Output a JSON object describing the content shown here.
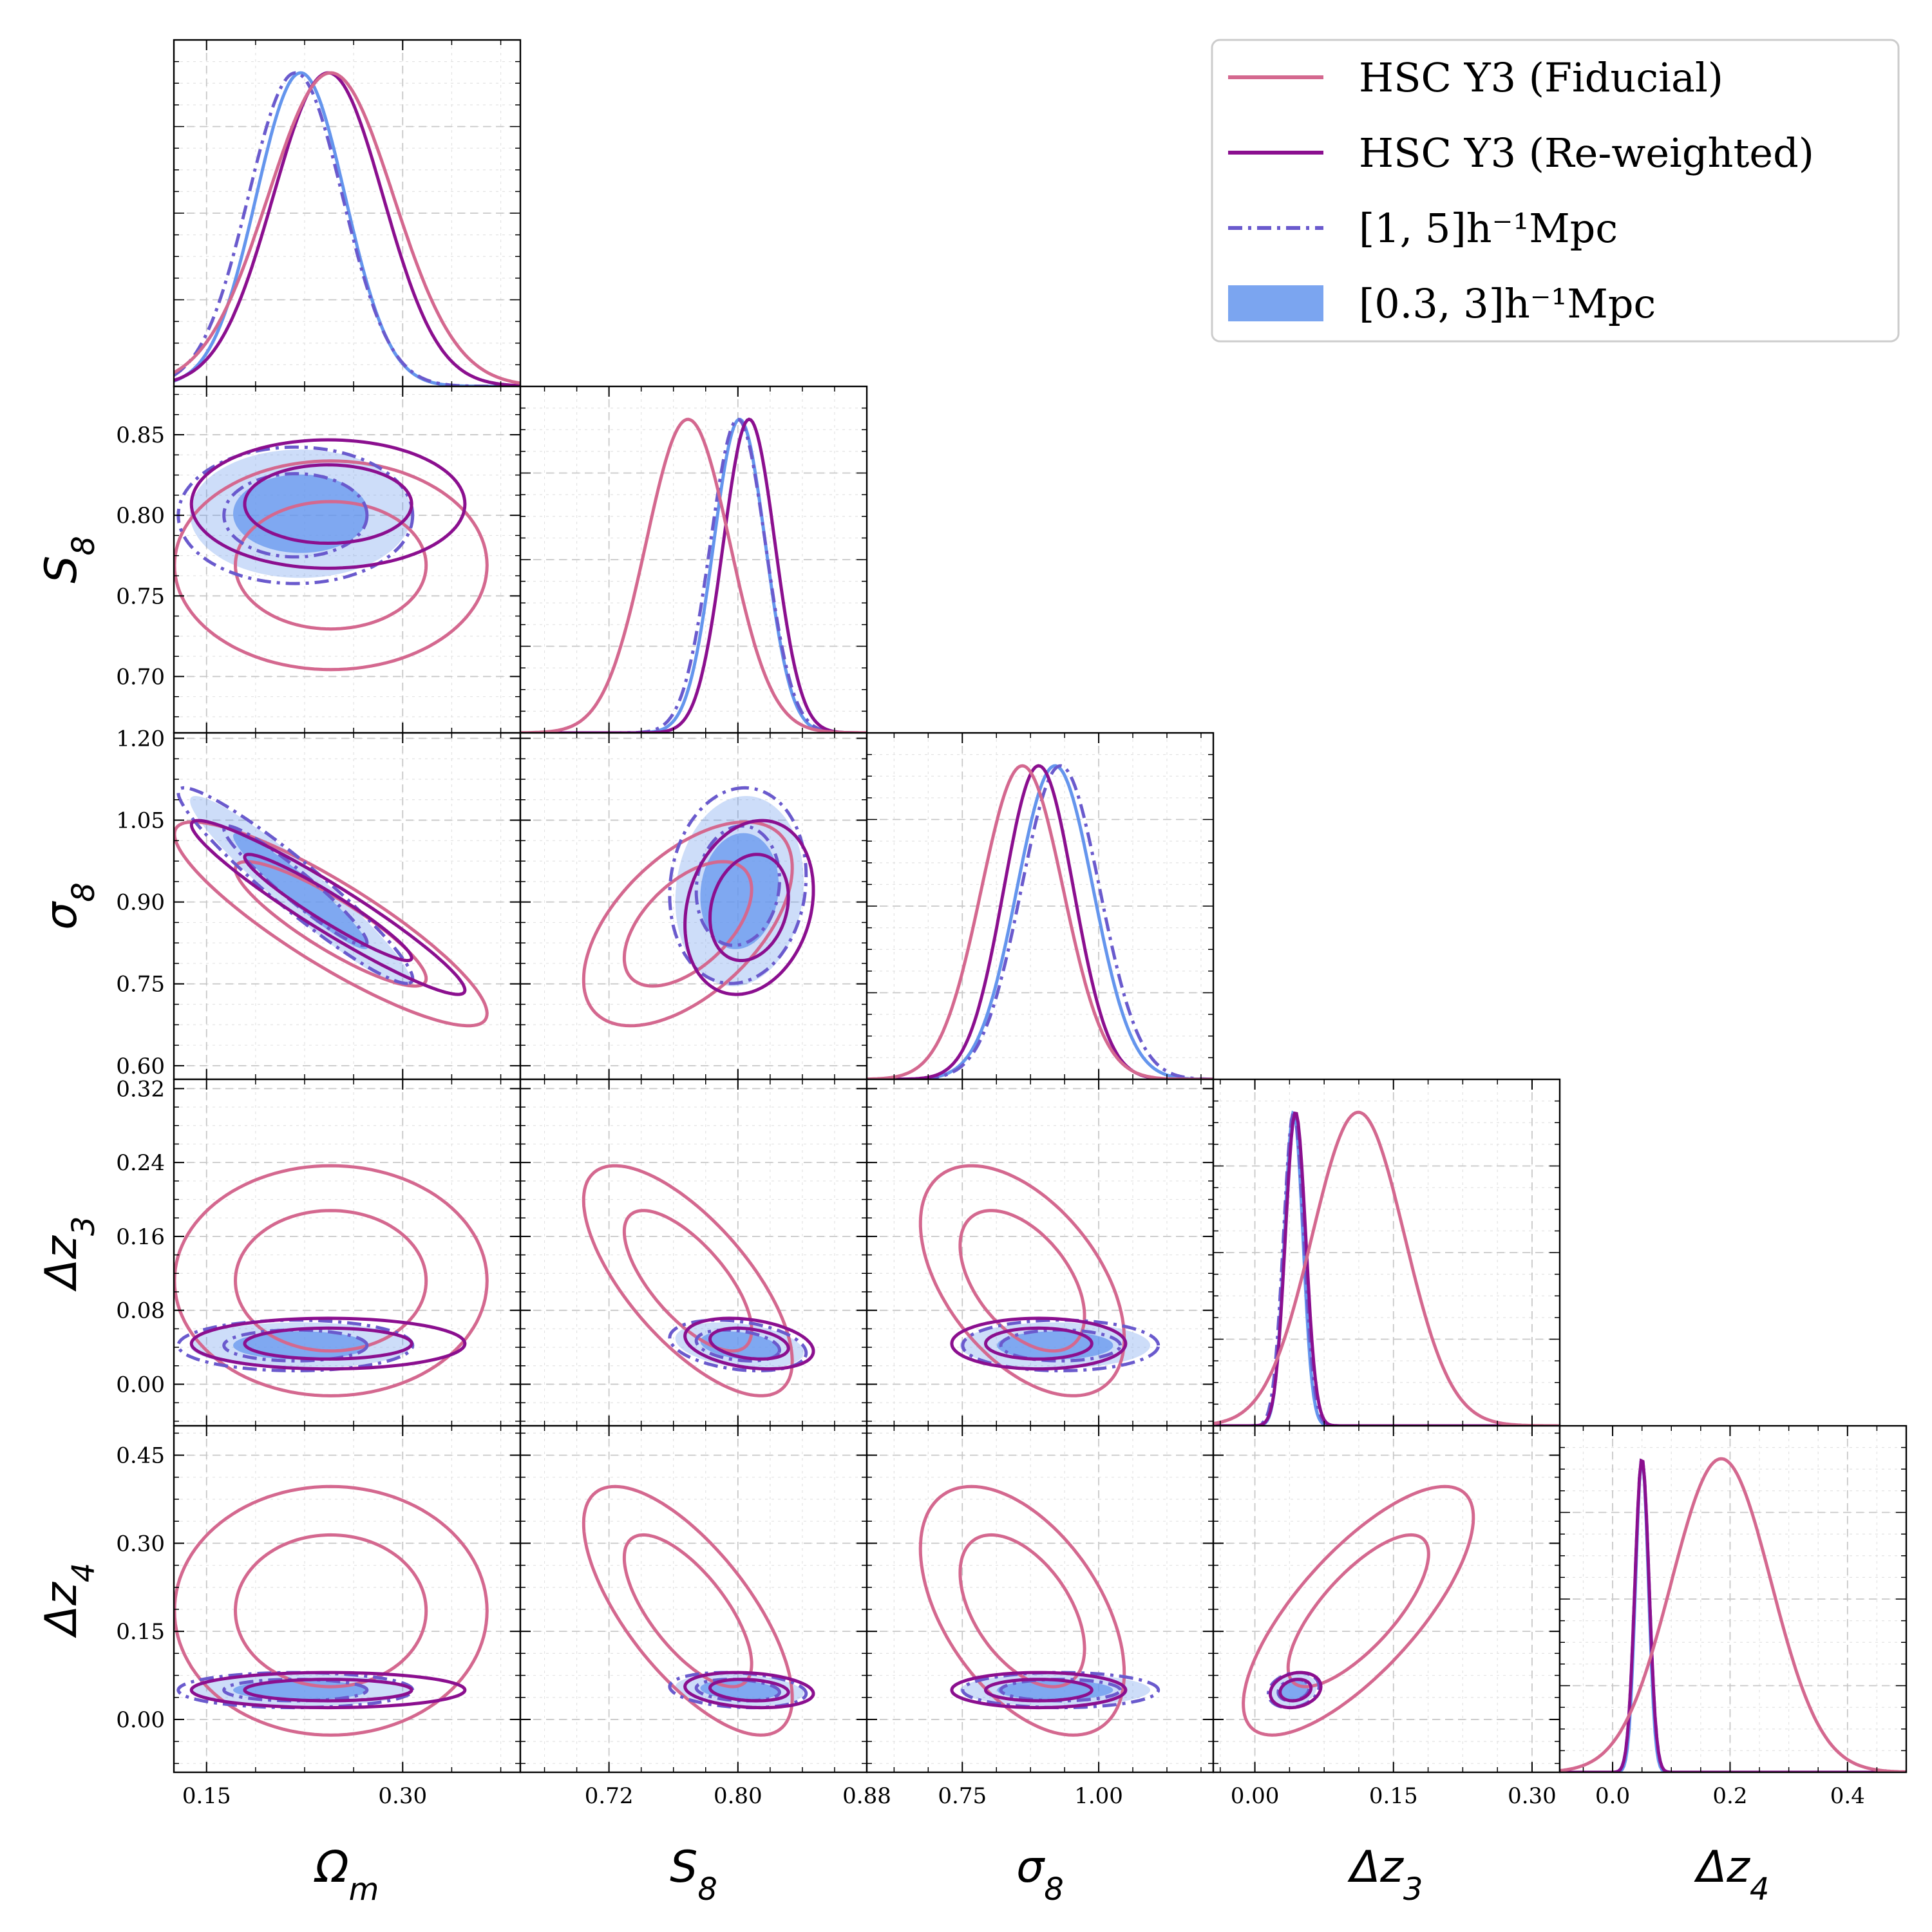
{
  "chart_data": {
    "type": "corner",
    "parameters": [
      {
        "key": "Om",
        "label": "Ω",
        "sub": "m",
        "range": [
          0.125,
          0.39
        ],
        "ticks": [
          0.15,
          0.3
        ],
        "tick_labels": [
          "0.15",
          "0.30"
        ]
      },
      {
        "key": "S8",
        "label": "S",
        "sub": "8",
        "range": [
          0.665,
          0.88
        ],
        "ticks": [
          0.7,
          0.75,
          0.8,
          0.85
        ],
        "tick_labels": [
          "0.70",
          "0.75",
          "0.80",
          "0.85"
        ],
        "x_ticks": [
          0.72,
          0.8,
          0.88
        ],
        "x_tick_labels": [
          "0.72",
          "0.80",
          "0.88"
        ]
      },
      {
        "key": "sig8",
        "label": "σ",
        "sub": "8",
        "range": [
          0.575,
          1.21
        ],
        "ticks": [
          0.6,
          0.75,
          0.9,
          1.05,
          1.2
        ],
        "tick_labels": [
          "0.60",
          "0.75",
          "0.90",
          "1.05",
          "1.20"
        ],
        "x_ticks": [
          0.75,
          1.0
        ],
        "x_tick_labels": [
          "0.75",
          "1.00"
        ]
      },
      {
        "key": "dz3",
        "label": "Δz",
        "sub": "3",
        "range": [
          -0.045,
          0.33
        ],
        "ticks": [
          0.0,
          0.08,
          0.16,
          0.24,
          0.32
        ],
        "tick_labels": [
          "0.00",
          "0.08",
          "0.16",
          "0.24",
          "0.32"
        ],
        "x_ticks": [
          0.0,
          0.15,
          0.3
        ],
        "x_tick_labels": [
          "0.00",
          "0.15",
          "0.30"
        ]
      },
      {
        "key": "dz4",
        "label": "Δz",
        "sub": "4",
        "range": [
          -0.09,
          0.5
        ],
        "ticks": [
          0.0,
          0.15,
          0.3,
          0.45
        ],
        "tick_labels": [
          "0.00",
          "0.15",
          "0.30",
          "0.45"
        ],
        "x_ticks": [
          0.0,
          0.2,
          0.4
        ],
        "x_tick_labels": [
          "0.0",
          "0.2",
          "0.4"
        ]
      }
    ],
    "series": [
      {
        "name": "HSC Y3 (Fiducial)",
        "legend_label": "HSC Y3 (Fiducial)",
        "style": "solid",
        "color": "#d4688f",
        "mean": {
          "Om": 0.245,
          "S8": 0.769,
          "sig8": 0.86,
          "dz3": 0.112,
          "dz4": 0.185
        },
        "sigma": {
          "Om": 0.048,
          "S8": 0.026,
          "sig8": 0.075,
          "dz3": 0.05,
          "dz4": 0.085
        },
        "corr": [
          [
            1,
            0,
            -0.88,
            0,
            0
          ],
          [
            0,
            1,
            0.55,
            -0.7,
            -0.7
          ],
          [
            -0.88,
            0.55,
            1,
            -0.5,
            -0.5
          ],
          [
            0,
            -0.7,
            -0.5,
            1,
            0.75
          ],
          [
            0,
            -0.7,
            -0.5,
            0.75,
            1
          ]
        ]
      },
      {
        "name": "HSC Y3 (Re-weighted)",
        "legend_label": "HSC Y3 (Re-weighted)",
        "style": "solid",
        "color": "#8b0f8f",
        "mean": {
          "Om": 0.243,
          "S8": 0.807,
          "sig8": 0.89,
          "dz3": 0.044,
          "dz4": 0.05
        },
        "sigma": {
          "Om": 0.042,
          "S8": 0.016,
          "sig8": 0.064,
          "dz3": 0.011,
          "dz4": 0.012
        },
        "corr": [
          [
            1,
            0,
            -0.95,
            0,
            0
          ],
          [
            0,
            1,
            0.2,
            -0.3,
            -0.2
          ],
          [
            -0.95,
            0.2,
            1,
            0,
            0
          ],
          [
            0,
            -0.3,
            0,
            1,
            0.2
          ],
          [
            0,
            -0.2,
            0,
            0.2,
            1
          ]
        ]
      },
      {
        "name": "[1, 5]h⁻¹Mpc",
        "legend_label": "[1, 5]h⁻¹Mpc",
        "style": "dashdot",
        "color": "#6a5acd",
        "mean": {
          "Om": 0.218,
          "S8": 0.8,
          "sig8": 0.93,
          "dz3": 0.042,
          "dz4": 0.05
        },
        "sigma": {
          "Om": 0.036,
          "S8": 0.017,
          "sig8": 0.072,
          "dz3": 0.011,
          "dz4": 0.012
        },
        "corr": [
          [
            1,
            0,
            -0.95,
            0,
            0
          ],
          [
            0,
            1,
            0.1,
            -0.3,
            -0.2
          ],
          [
            -0.95,
            0.1,
            1,
            0,
            0
          ],
          [
            0,
            -0.3,
            0,
            1,
            0.2
          ],
          [
            0,
            -0.2,
            0,
            0.2,
            1
          ]
        ]
      },
      {
        "name": "[0.3, 3]h⁻¹Mpc",
        "legend_label": "[0.3, 3]h⁻¹Mpc",
        "style": "filled",
        "color": "#6495ed",
        "mean": {
          "Om": 0.222,
          "S8": 0.801,
          "sig8": 0.92,
          "dz3": 0.042,
          "dz4": 0.05
        },
        "sigma": {
          "Om": 0.034,
          "S8": 0.016,
          "sig8": 0.07,
          "dz3": 0.01,
          "dz4": 0.011
        },
        "corr": [
          [
            1,
            0,
            -0.95,
            0,
            0
          ],
          [
            0,
            1,
            0.1,
            -0.3,
            -0.2
          ],
          [
            -0.95,
            0.1,
            1,
            0,
            0
          ],
          [
            0,
            -0.3,
            0,
            1,
            0.2
          ],
          [
            0,
            -0.2,
            0,
            0.2,
            1
          ]
        ]
      }
    ],
    "legend_position": "top-right",
    "grid": true
  }
}
